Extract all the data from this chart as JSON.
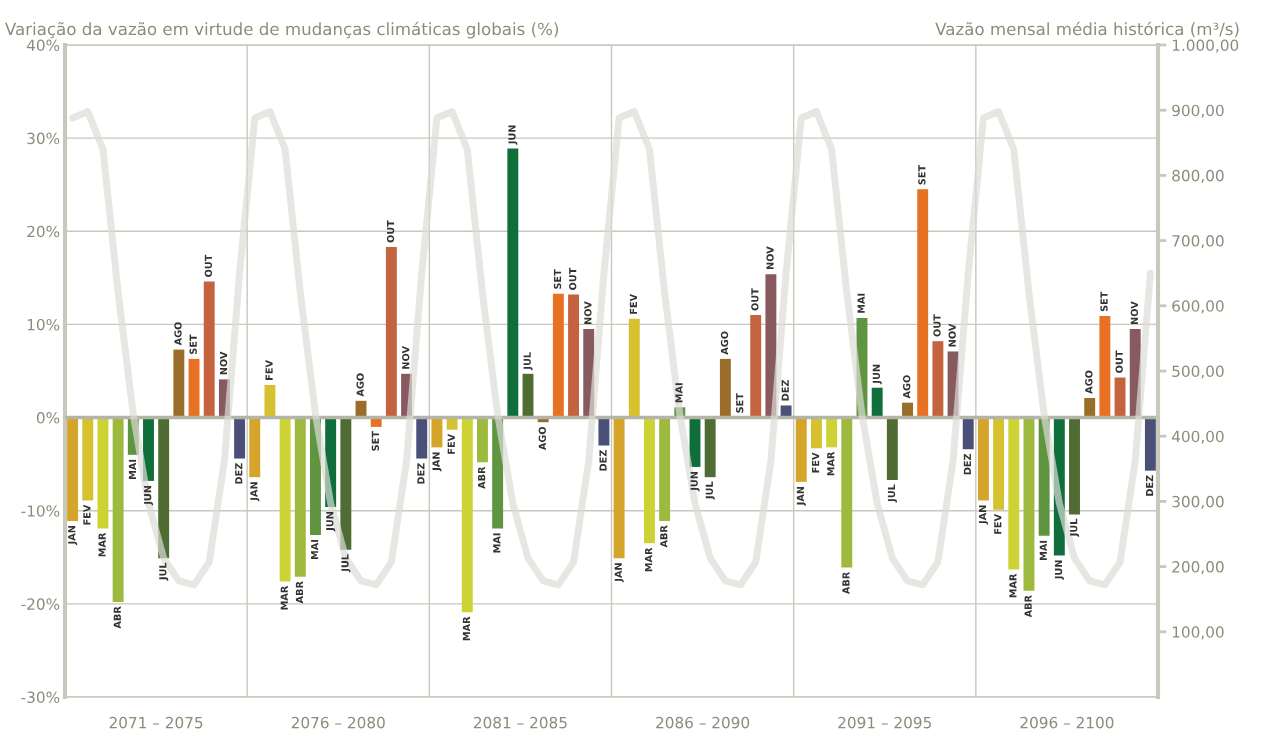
{
  "chart_data": {
    "type": "bar",
    "ylabel": "Variação da vazão em virtude de mudanças climáticas globais (%)",
    "y2label": "Vazão mensal média histórica (m³/s)",
    "categories": [
      "JAN",
      "FEV",
      "MAR",
      "ABR",
      "MAI",
      "JUN",
      "JUL",
      "AGO",
      "SET",
      "OUT",
      "NOV",
      "DEZ",
      "JAN",
      "FEV",
      "MAR",
      "ABR",
      "MAI",
      "JUN",
      "JUL",
      "AGO",
      "SET",
      "OUT",
      "NOV",
      "DEZ",
      "JAN",
      "FEV",
      "MAR",
      "ABR",
      "MAI",
      "JUN",
      "JUL",
      "AGO",
      "SET",
      "OUT",
      "NOV",
      "DEZ",
      "JAN",
      "FEV",
      "MAR",
      "ABR",
      "MAI",
      "JUN",
      "JUL",
      "AGO",
      "SET",
      "OUT",
      "NOV",
      "DEZ",
      "JAN",
      "FEV",
      "MAR",
      "ABR",
      "MAI",
      "JUN",
      "JUL",
      "AGO",
      "SET",
      "OUT",
      "NOV",
      "DEZ",
      "JAN",
      "FEV",
      "MAR",
      "ABR",
      "MAI",
      "JUN",
      "JUL",
      "AGO",
      "SET",
      "OUT",
      "NOV",
      "DEZ"
    ],
    "series": [
      {
        "values": [
          -11.1,
          -8.9,
          -11.9,
          -19.8,
          -4.0,
          -6.8,
          -15.1,
          7.3,
          6.3,
          14.6,
          4.1,
          -4.4,
          -6.4,
          3.5,
          -17.6,
          -17.1,
          -12.6,
          -9.6,
          -14.2,
          1.8,
          -1.0,
          18.3,
          4.7,
          -4.4,
          -3.2,
          -1.3,
          -20.9,
          -4.8,
          -11.9,
          28.9,
          4.7,
          -0.5,
          13.3,
          13.2,
          9.5,
          -3.0,
          -15.1,
          10.6,
          -13.5,
          -11.1,
          1.1,
          -5.3,
          -6.4,
          6.3,
          0,
          11.0,
          15.4,
          1.3,
          -6.9,
          -3.3,
          -3.2,
          -16.1,
          10.7,
          3.2,
          -6.7,
          1.6,
          24.5,
          8.2,
          7.1,
          -3.4,
          -8.9,
          -9.9,
          -16.3,
          -18.6,
          -12.7,
          -14.8,
          -10.4,
          2.1,
          10.9,
          4.3,
          9.5,
          -5.7
        ],
        "colors": [
          "#d4a52a",
          "#d6c12e",
          "#cdd334",
          "#9dba3e",
          "#5f9440",
          "#0f6e3a",
          "#4e6c34",
          "#9a6e2a",
          "#e87124",
          "#c56340",
          "#875a60",
          "#4a5078",
          "#d4a52a",
          "#d6c12e",
          "#cdd334",
          "#9dba3e",
          "#5f9440",
          "#0f6e3a",
          "#4e6c34",
          "#9a6e2a",
          "#e87124",
          "#c56340",
          "#875a60",
          "#4a5078",
          "#d4a52a",
          "#d6c12e",
          "#cdd334",
          "#9dba3e",
          "#5f9440",
          "#0f6e3a",
          "#4e6c34",
          "#9a6e2a",
          "#e87124",
          "#c56340",
          "#875a60",
          "#4a5078",
          "#d4a52a",
          "#d6c12e",
          "#cdd334",
          "#9dba3e",
          "#5f9440",
          "#0f6e3a",
          "#4e6c34",
          "#9a6e2a",
          "#e87124",
          "#c56340",
          "#875a60",
          "#4a5078",
          "#d4a52a",
          "#d6c12e",
          "#cdd334",
          "#9dba3e",
          "#5f9440",
          "#0f6e3a",
          "#4e6c34",
          "#9a6e2a",
          "#e87124",
          "#c56340",
          "#875a60",
          "#4a5078",
          "#d4a52a",
          "#d6c12e",
          "#cdd334",
          "#9dba3e",
          "#5f9440",
          "#0f6e3a",
          "#4e6c34",
          "#9a6e2a",
          "#e87124",
          "#c56340",
          "#875a60",
          "#4a5078"
        ]
      },
      {
        "type": "line",
        "axis": "y2",
        "color": "#dcdcd6",
        "values": [
          888,
          898,
          840,
          620,
          433,
          297,
          213,
          178,
          172,
          207,
          362,
          650,
          888,
          898,
          840,
          620,
          433,
          297,
          213,
          178,
          172,
          207,
          362,
          650,
          888,
          898,
          840,
          620,
          433,
          297,
          213,
          178,
          172,
          207,
          362,
          650,
          888,
          898,
          840,
          620,
          433,
          297,
          213,
          178,
          172,
          207,
          362,
          650,
          888,
          898,
          840,
          620,
          433,
          297,
          213,
          178,
          172,
          207,
          362,
          650,
          888,
          898,
          840,
          620,
          433,
          297,
          213,
          178,
          172,
          207,
          362,
          650
        ]
      }
    ],
    "ylim": [
      -30,
      40
    ],
    "yticks": [
      {
        "value": -30,
        "label": "-30%"
      },
      {
        "value": -20,
        "label": "-20%"
      },
      {
        "value": -10,
        "label": "-10%"
      },
      {
        "value": 0,
        "label": "0%"
      },
      {
        "value": 10,
        "label": "10%"
      },
      {
        "value": 20,
        "label": "20%"
      },
      {
        "value": 30,
        "label": "30%"
      },
      {
        "value": 40,
        "label": "40%"
      }
    ],
    "y2lim": [
      0,
      1000
    ],
    "y2ticks": [
      {
        "value": 100,
        "label": "100,00"
      },
      {
        "value": 200,
        "label": "200,00"
      },
      {
        "value": 300,
        "label": "300,00"
      },
      {
        "value": 400,
        "label": "400,00"
      },
      {
        "value": 500,
        "label": "500,00"
      },
      {
        "value": 600,
        "label": "600,00"
      },
      {
        "value": 700,
        "label": "700,00"
      },
      {
        "value": 800,
        "label": "800,00"
      },
      {
        "value": 900,
        "label": "900,00"
      },
      {
        "value": 1000,
        "label": "1.000,00"
      }
    ],
    "annotations": [
      "2071 – 2075",
      "2076 – 2080",
      "2081 – 2085",
      "2086 – 2090",
      "2091 – 2095",
      "2096 – 2100"
    ],
    "grid": "y",
    "legend": false,
    "marker": "none",
    "line_style": "solid"
  }
}
